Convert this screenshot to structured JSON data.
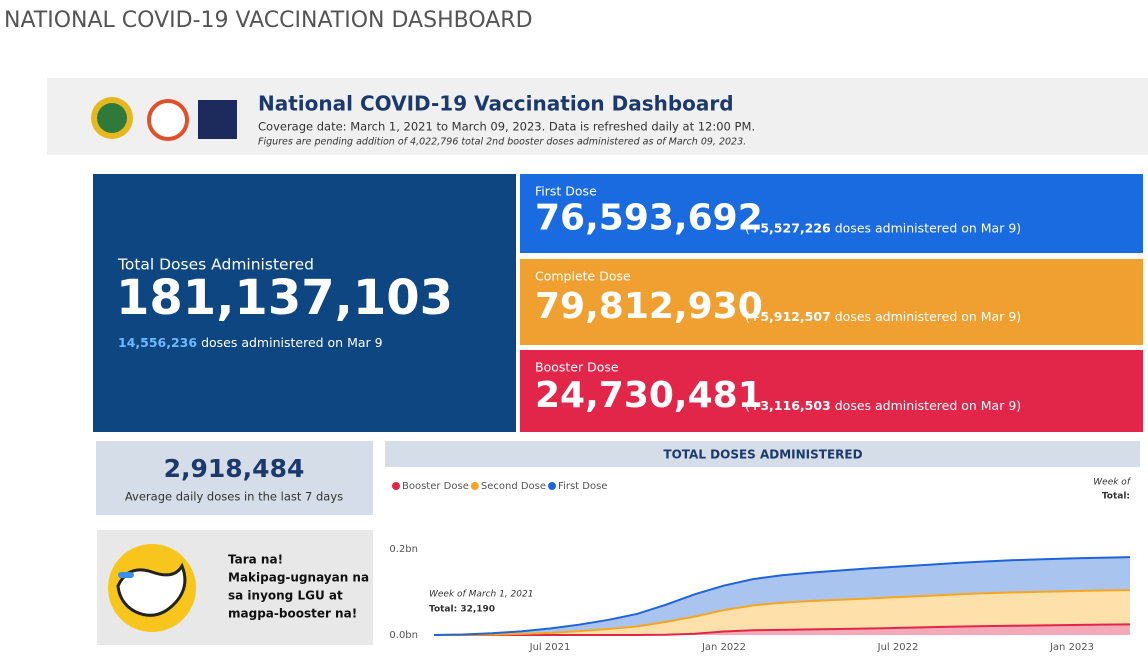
{
  "page_title": "NATIONAL COVID-19 VACCINATION DASHBOARD",
  "header": {
    "title": "National COVID-19 Vaccination Dashboard",
    "coverage": "Coverage date: March 1, 2021 to March 09, 2023. Data is refreshed daily at 12:00 PM.",
    "note": "Figures are pending addition of 4,022,796 total 2nd booster doses administered as of March 09, 2023."
  },
  "total": {
    "label": "Total Doses Administered",
    "value": "181,137,103",
    "today": "14,556,236",
    "today_text": "doses administered on Mar 9"
  },
  "doses": [
    {
      "label": "First Dose",
      "value": "76,593,692",
      "open": "(",
      "delta": "+5,527,226",
      "text": "doses administered on Mar 9)",
      "color": "#1a6ae0"
    },
    {
      "label": "Complete Dose",
      "value": "79,812,930",
      "open": "(",
      "delta": "+5,912,507",
      "text": "doses administered on Mar 9)",
      "color": "#f0a030"
    },
    {
      "label": "Booster Dose",
      "value": "24,730,481",
      "open": "(",
      "delta": "+3,116,503",
      "text": "doses administered on Mar 9)",
      "color": "#e2264a"
    }
  ],
  "average": {
    "value": "2,918,484",
    "label": "Average daily doses in the last 7 days"
  },
  "promo": {
    "lines": [
      "Tara na!",
      "Makipag-ugnayan na",
      "sa inyong LGU at",
      "magpa-booster na!"
    ]
  },
  "chart_data": {
    "type": "stacked_area",
    "title": "TOTAL DOSES ADMINISTERED",
    "x": [
      "2021-03",
      "2021-04",
      "2021-05",
      "2021-06",
      "2021-07",
      "2021-08",
      "2021-09",
      "2021-10",
      "2021-11",
      "2021-12",
      "2022-01",
      "2022-02",
      "2022-03",
      "2022-04",
      "2022-05",
      "2022-06",
      "2022-07",
      "2022-08",
      "2022-09",
      "2022-10",
      "2022-11",
      "2022-12",
      "2023-01",
      "2023-02",
      "2023-03"
    ],
    "xlim": [
      "2021-03",
      "2023-03"
    ],
    "xticks": [
      {
        "value": "2021-07",
        "label": "Jul 2021"
      },
      {
        "value": "2022-01",
        "label": "Jan 2022"
      },
      {
        "value": "2022-07",
        "label": "Jul 2022"
      },
      {
        "value": "2023-01",
        "label": "Jan 2023"
      }
    ],
    "ylim": [
      0,
      200000000
    ],
    "yticks": [
      {
        "value": 0,
        "label": "0.0bn"
      },
      {
        "value": 200000000,
        "label": "0.2bn"
      }
    ],
    "grid": false,
    "series": [
      {
        "name": "Booster Dose",
        "color": "#e2264a",
        "fill": "#f4a9b8",
        "values": [
          0,
          0,
          0,
          0,
          0,
          0,
          0,
          0,
          500000,
          3000000,
          8000000,
          11000000,
          12000000,
          13000000,
          14000000,
          15000000,
          16500000,
          18000000,
          19500000,
          20500000,
          21500000,
          22500000,
          23300000,
          24000000,
          24700000
        ]
      },
      {
        "name": "Second Dose",
        "color": "#f5a623",
        "fill": "#fde0aa",
        "values": [
          0,
          200000,
          1000000,
          2500000,
          5000000,
          9000000,
          14000000,
          20000000,
          30000000,
          40000000,
          50000000,
          58000000,
          63000000,
          66000000,
          68000000,
          70000000,
          71500000,
          73000000,
          75000000,
          76500000,
          77500000,
          78200000,
          78800000,
          79400000,
          79800000
        ]
      },
      {
        "name": "First Dose",
        "color": "#1f64d8",
        "fill": "#a9c4ee",
        "values": [
          30000,
          1000000,
          3000000,
          6000000,
          10000000,
          15000000,
          21000000,
          29000000,
          40000000,
          52000000,
          57000000,
          61000000,
          64000000,
          66000000,
          68000000,
          70000000,
          71000000,
          72000000,
          73000000,
          74000000,
          75000000,
          75500000,
          76000000,
          76300000,
          76600000
        ]
      }
    ],
    "annotations": [
      "Week of March 1, 2021",
      "Total: 32,190"
    ],
    "hover_labels": [
      "Week of",
      "Total:"
    ]
  }
}
